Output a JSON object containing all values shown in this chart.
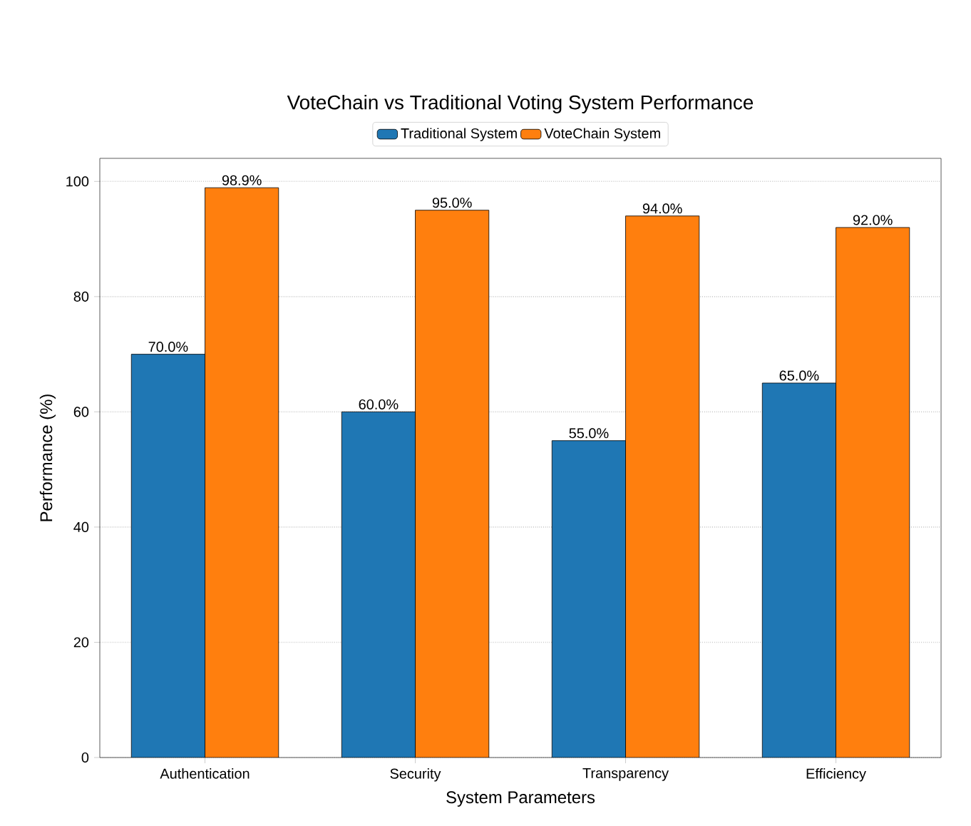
{
  "chart_data": {
    "type": "bar",
    "title": "VoteChain vs Traditional Voting System Performance",
    "xlabel": "System Parameters",
    "ylabel": "Performance (%)",
    "categories": [
      "Authentication",
      "Security",
      "Transparency",
      "Efficiency"
    ],
    "series": [
      {
        "name": "Traditional System",
        "color": "#1f77b4",
        "values": [
          70,
          60,
          55,
          65
        ],
        "value_labels": [
          "70.0%",
          "60.0%",
          "55.0%",
          "65.0%"
        ]
      },
      {
        "name": "VoteChain System",
        "color": "#ff7f0e",
        "values": [
          98.9,
          95,
          94,
          92
        ],
        "value_labels": [
          "98.9%",
          "95.0%",
          "94.0%",
          "92.0%"
        ]
      }
    ],
    "ylim": [
      0,
      104
    ],
    "yticks": [
      0,
      20,
      40,
      60,
      80,
      100
    ],
    "grid": "y",
    "legend": "top"
  }
}
